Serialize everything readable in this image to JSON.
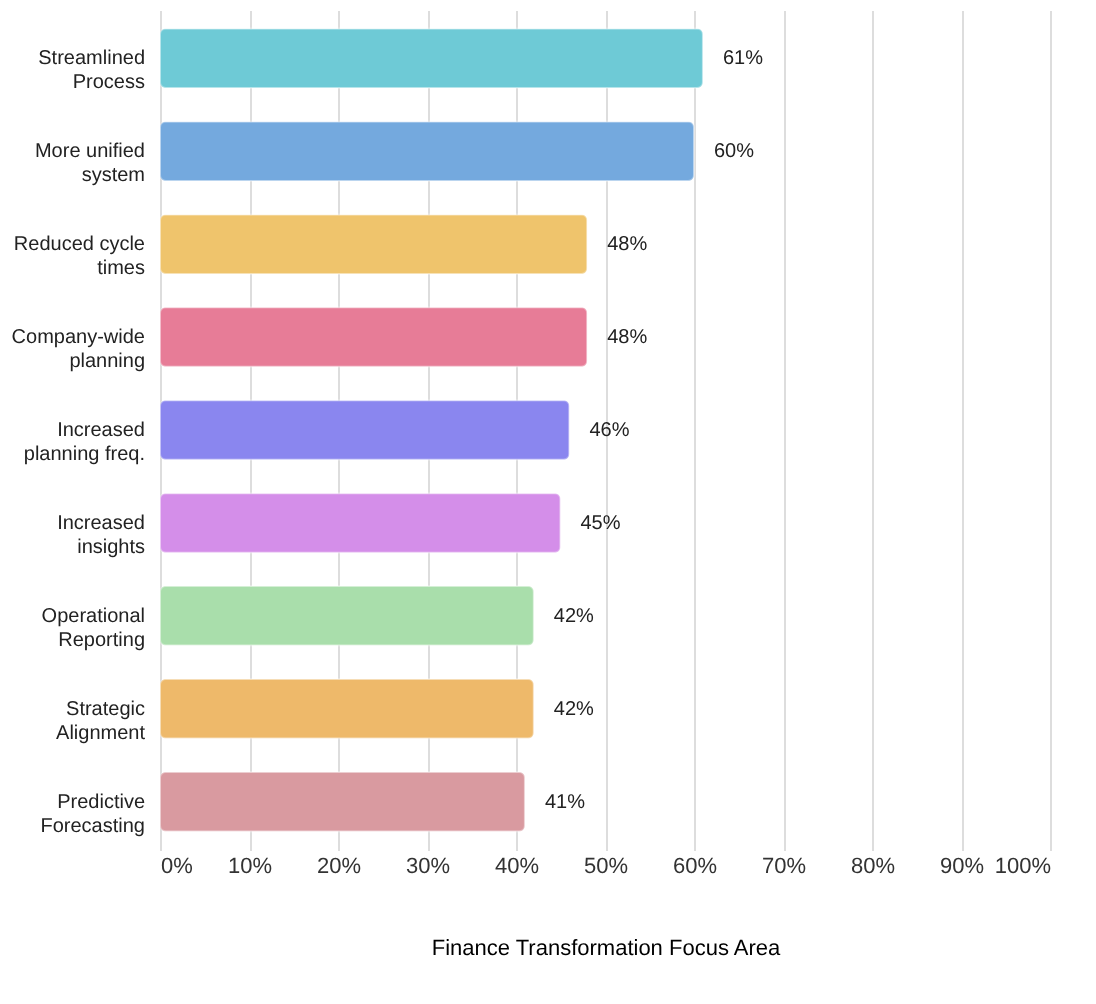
{
  "chart_data": {
    "type": "bar",
    "orientation": "horizontal",
    "xlabel": "Finance Transformation Focus Area",
    "categories": [
      "Streamlined\nProcess",
      "More unified\nsystem",
      "Reduced cycle\ntimes",
      "Company-wide\nplanning",
      "Increased\nplanning freq.",
      "Increased\ninsights",
      "Operational\nReporting",
      "Strategic\nAlignment",
      "Predictive\nForecasting"
    ],
    "values": [
      61,
      60,
      48,
      48,
      46,
      45,
      42,
      42,
      41
    ],
    "value_labels": [
      "61%",
      "60%",
      "48%",
      "48%",
      "46%",
      "45%",
      "42%",
      "42%",
      "41%"
    ],
    "colors": [
      "#6ecad6",
      "#74a9de",
      "#efc46c",
      "#e77c97",
      "#8a86ef",
      "#d48ee9",
      "#a9deab",
      "#eeb96a",
      "#d99aa0"
    ],
    "xlim": [
      0,
      100
    ],
    "xticks": [
      {
        "value": 0,
        "label": "0%"
      },
      {
        "value": 10,
        "label": "10%"
      },
      {
        "value": 20,
        "label": "20%"
      },
      {
        "value": 30,
        "label": "30%"
      },
      {
        "value": 40,
        "label": "40%"
      },
      {
        "value": 50,
        "label": "50%"
      },
      {
        "value": 60,
        "label": "60%"
      },
      {
        "value": 70,
        "label": "70%"
      },
      {
        "value": 80,
        "label": "80%"
      },
      {
        "value": 90,
        "label": "90%"
      },
      {
        "value": 100,
        "label": "100%"
      }
    ],
    "grid": "x",
    "legend": false
  }
}
